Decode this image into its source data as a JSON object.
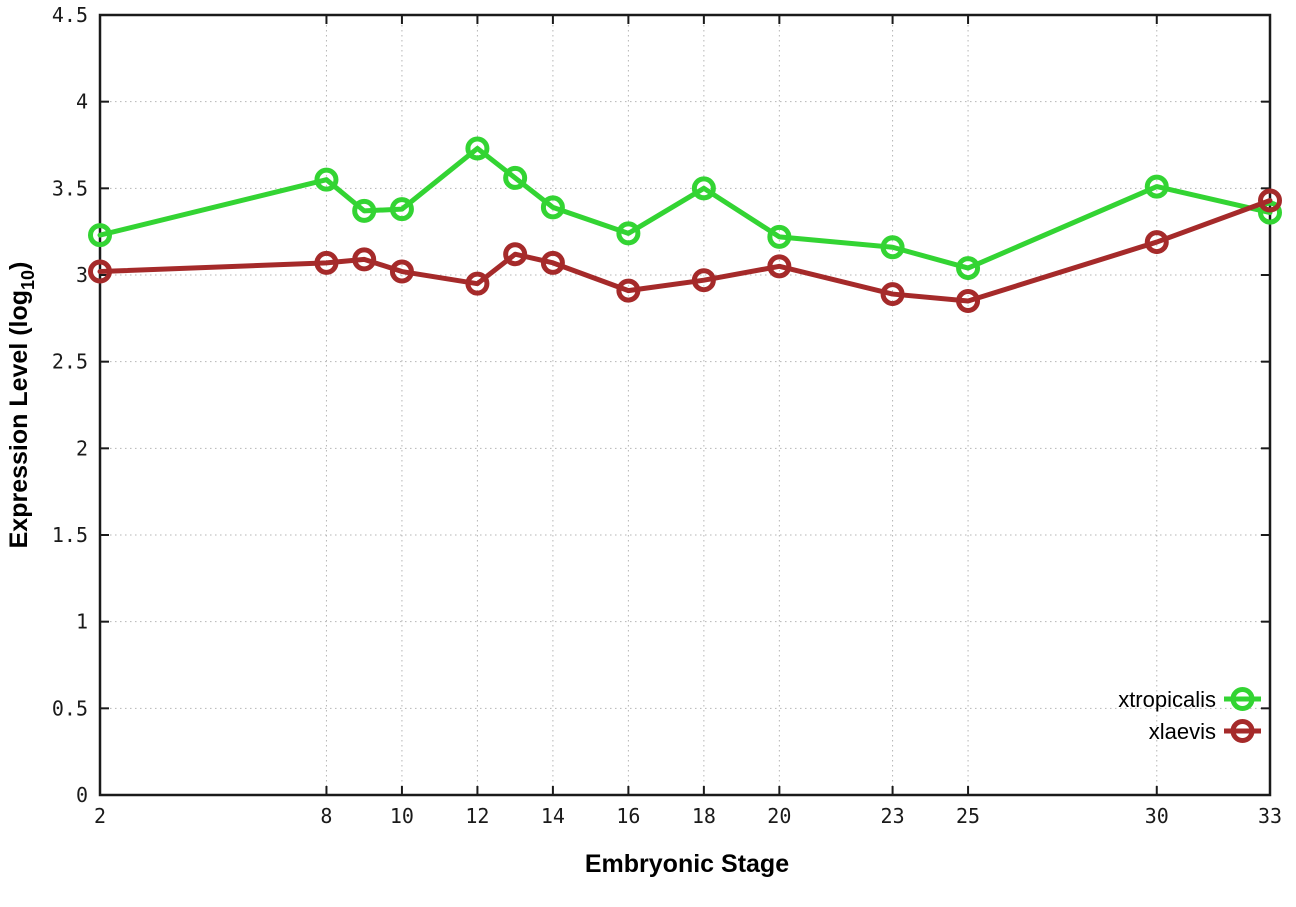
{
  "window": {
    "background": "#ffffff"
  },
  "chart_data": {
    "type": "line",
    "title": "",
    "xlabel": "Embryonic Stage",
    "ylabel": "Expression Level (log10)",
    "ylabel_parts": {
      "main": "Expression Level (log",
      "sub": "10",
      "end": ")"
    },
    "xlim": [
      2,
      33
    ],
    "ylim": [
      0,
      4.5
    ],
    "x_ticks": [
      2,
      8,
      10,
      12,
      14,
      16,
      18,
      20,
      23,
      25,
      30,
      33
    ],
    "y_ticks": [
      0,
      0.5,
      1,
      1.5,
      2,
      2.5,
      3,
      3.5,
      4,
      4.5
    ],
    "grid": true,
    "grid_style": "dotted",
    "legend_position": "inside-right-bottom",
    "x": [
      2,
      8,
      9,
      10,
      12,
      13,
      14,
      16,
      18,
      20,
      23,
      25,
      30,
      33
    ],
    "series": [
      {
        "name": "xtropicalis",
        "color": "#33d433",
        "marker": "open-circle",
        "values": [
          3.23,
          3.55,
          3.37,
          3.38,
          3.73,
          3.56,
          3.39,
          3.24,
          3.5,
          3.22,
          3.16,
          3.04,
          3.51,
          3.36
        ]
      },
      {
        "name": "xlaevis",
        "color": "#a52a2a",
        "marker": "open-circle",
        "values": [
          3.02,
          3.07,
          3.09,
          3.02,
          2.95,
          3.12,
          3.07,
          2.91,
          2.97,
          3.05,
          2.89,
          2.85,
          3.19,
          3.43
        ]
      }
    ],
    "colors": {
      "border": "#1a1a1a",
      "grid": "#b5b5b5",
      "text": "#1a1a1a"
    }
  }
}
